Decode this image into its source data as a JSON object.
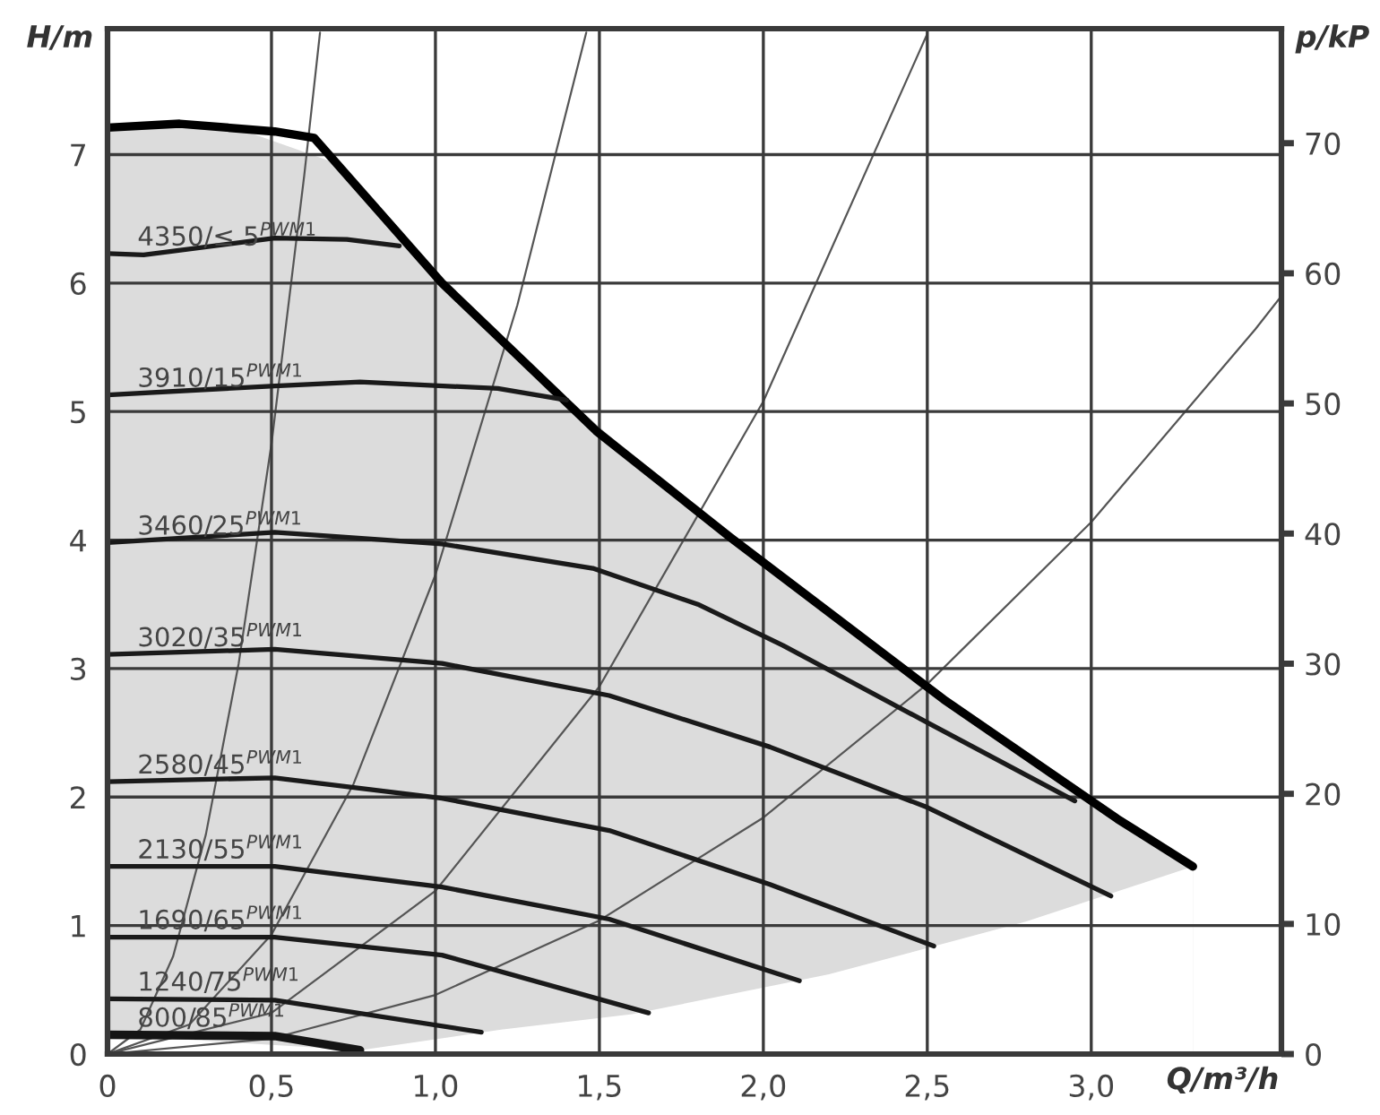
{
  "chart_data": {
    "type": "line",
    "xlabel": "Q/m³/h",
    "ylabel": "H/m",
    "y2label": "p/kP",
    "xlim": [
      0,
      3.58
    ],
    "ylim": [
      0,
      7.98
    ],
    "y2lim": [
      0,
      78.8
    ],
    "xticks": [
      0,
      {
        "value": 0.5,
        "label": "0,5"
      },
      {
        "value": 1.0,
        "label": "1,0"
      },
      {
        "value": 1.5,
        "label": "1,5"
      },
      {
        "value": 2.0,
        "label": "2,0"
      },
      {
        "value": 2.5,
        "label": "2,5"
      },
      {
        "value": 3.0,
        "label": "3,0"
      }
    ],
    "yticks": [
      0,
      1,
      2,
      3,
      4,
      5,
      6,
      7
    ],
    "y2ticks": [
      0,
      10,
      20,
      30,
      40,
      50,
      60,
      70
    ],
    "grid": true,
    "series": [
      {
        "type": "area",
        "color": "#dcdcdc",
        "x": [
          0,
          0.4,
          0.7,
          1.2,
          1.7,
          2.2,
          2.8,
          3.31
        ],
        "values": [
          7.21,
          7.2,
          6.93,
          5.56,
          4.43,
          3.44,
          2.32,
          1.46
        ]
      },
      {
        "type": "area",
        "color": "#ffffff",
        "x": [
          0,
          0.77,
          1.2,
          1.6,
          2.2,
          2.8,
          3.31
        ],
        "values": [
          0.15,
          0.03,
          0.19,
          0.31,
          0.62,
          1.03,
          1.46
        ]
      },
      {
        "color": "#555555",
        "x": [
          0,
          0.1,
          0.2,
          0.3,
          0.4,
          0.5,
          0.6,
          0.648
        ],
        "values": [
          0,
          0.19,
          0.76,
          1.71,
          3.04,
          4.75,
          6.84,
          7.95
        ]
      },
      {
        "color": "#555555",
        "x": [
          0,
          0.25,
          0.5,
          0.75,
          1.0,
          1.25,
          1.46
        ],
        "values": [
          0,
          0.23,
          0.93,
          2.1,
          3.73,
          5.83,
          7.95
        ]
      },
      {
        "color": "#555555",
        "x": [
          0,
          0.5,
          1.0,
          1.5,
          2.0,
          2.5
        ],
        "values": [
          0,
          0.32,
          1.27,
          2.86,
          5.08,
          7.94
        ]
      },
      {
        "color": "#555555",
        "x": [
          0,
          0.5,
          1.0,
          1.5,
          2.0,
          2.5,
          3.0,
          3.5,
          3.58
        ],
        "values": [
          0,
          0.12,
          0.46,
          1.04,
          1.84,
          2.88,
          4.14,
          5.64,
          5.9
        ]
      },
      {
        "color": "#000000",
        "x": [
          0,
          0.22,
          0.51,
          0.63,
          1.02,
          1.49,
          1.9,
          2.55,
          3.08,
          3.31
        ],
        "values": [
          7.21,
          7.24,
          7.18,
          7.13,
          6.0,
          4.85,
          4.02,
          2.76,
          1.83,
          1.46
        ]
      },
      {
        "color": "#1a1a1a",
        "name": "4350/≤ 5$^{PWM1}$",
        "x": [
          0,
          0.11,
          0.51,
          0.73,
          0.89
        ],
        "values": [
          6.23,
          6.22,
          6.35,
          6.34,
          6.29
        ]
      },
      {
        "color": "#1a1a1a",
        "name": "3910/15$^{PWM1}$",
        "x": [
          0,
          0.51,
          0.77,
          1.19,
          1.4
        ],
        "values": [
          5.13,
          5.2,
          5.23,
          5.18,
          5.09
        ]
      },
      {
        "color": "#1a1a1a",
        "name": "3460/25$^{PWM1}$",
        "x": [
          0,
          0.51,
          1.02,
          1.48,
          1.8,
          2.06,
          2.5,
          2.95
        ],
        "values": [
          3.98,
          4.06,
          3.97,
          3.78,
          3.5,
          3.18,
          2.58,
          1.97
        ]
      },
      {
        "color": "#1a1a1a",
        "name": "3020/35$^{PWM1}$",
        "x": [
          0,
          0.51,
          1.02,
          1.53,
          2.02,
          2.5,
          3.06
        ],
        "values": [
          3.11,
          3.15,
          3.04,
          2.79,
          2.39,
          1.92,
          1.23
        ]
      },
      {
        "color": "#1a1a1a",
        "name": "2580/45$^{PWM1}$",
        "x": [
          0,
          0.51,
          1.02,
          1.53,
          2.02,
          2.52
        ],
        "values": [
          2.12,
          2.15,
          1.99,
          1.74,
          1.32,
          0.84
        ]
      },
      {
        "color": "#1a1a1a",
        "name": "2130/55$^{PWM1}$",
        "x": [
          0,
          0.51,
          1.02,
          1.53,
          2.11
        ],
        "values": [
          1.46,
          1.46,
          1.3,
          1.05,
          0.57
        ]
      },
      {
        "color": "#1a1a1a",
        "name": "1690/65$^{PWM1}$",
        "x": [
          0,
          0.51,
          1.02,
          1.65
        ],
        "values": [
          0.91,
          0.91,
          0.77,
          0.32
        ]
      },
      {
        "color": "#1a1a1a",
        "name": "1240/75$^{PWM1}$",
        "x": [
          0,
          0.51,
          1.14
        ],
        "values": [
          0.43,
          0.42,
          0.17
        ]
      },
      {
        "color": "#141414",
        "name": "800/85$^{PWM1}$",
        "x": [
          0,
          0.51,
          0.77
        ],
        "values": [
          0.15,
          0.14,
          0.03
        ]
      }
    ]
  }
}
